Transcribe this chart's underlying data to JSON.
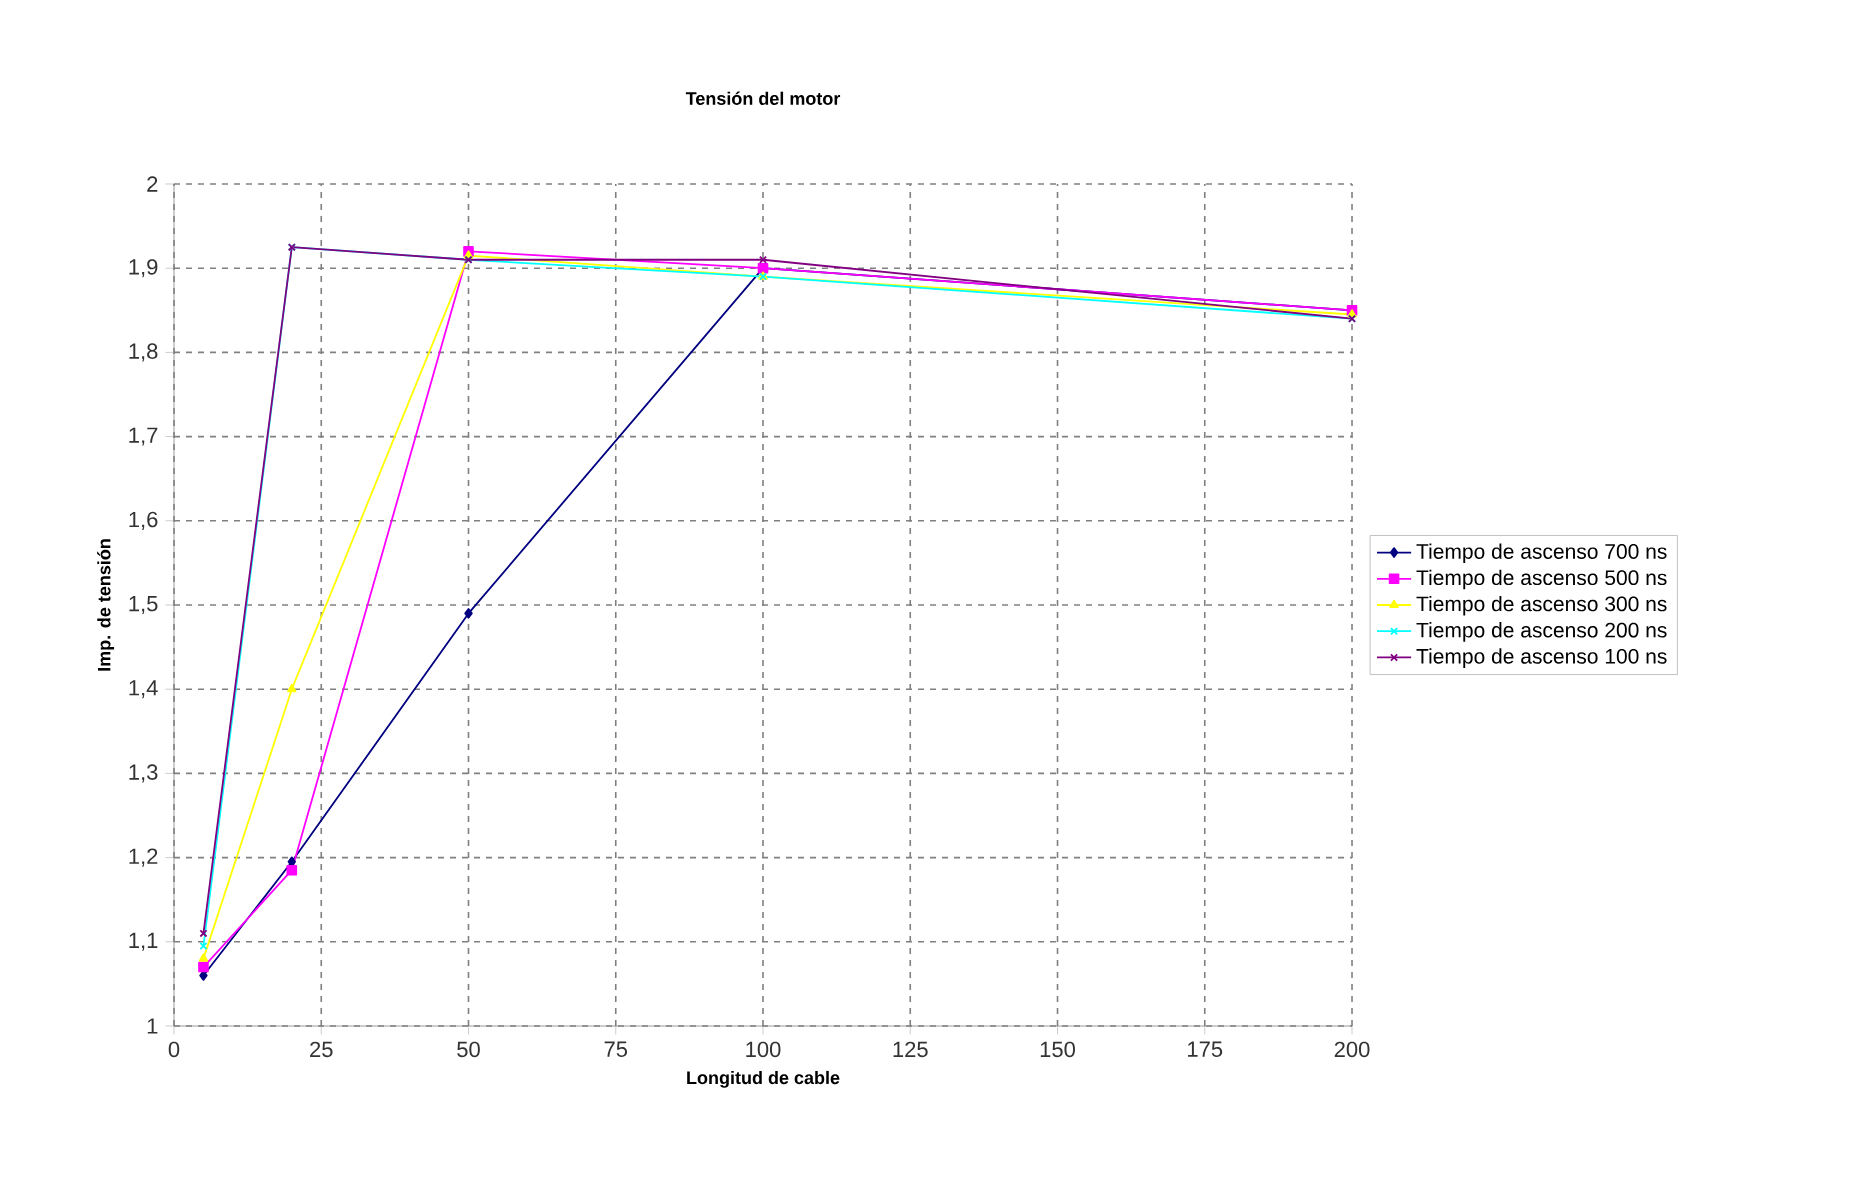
{
  "chart_data": {
    "type": "line",
    "title": "Tensión del motor",
    "xlabel": "Longitud de cable",
    "ylabel": "Imp. de tensión",
    "x": [
      5,
      20,
      50,
      100,
      200
    ],
    "xlim": [
      0,
      200
    ],
    "xticks": [
      0,
      25,
      50,
      75,
      100,
      125,
      150,
      175,
      200
    ],
    "ylim": [
      1,
      2
    ],
    "yticks": [
      {
        "value": 1,
        "label": "1"
      },
      {
        "value": 1.1,
        "label": "1,1"
      },
      {
        "value": 1.2,
        "label": "1,2"
      },
      {
        "value": 1.3,
        "label": "1,3"
      },
      {
        "value": 1.4,
        "label": "1,4"
      },
      {
        "value": 1.5,
        "label": "1,5"
      },
      {
        "value": 1.6,
        "label": "1,6"
      },
      {
        "value": 1.7,
        "label": "1,7"
      },
      {
        "value": 1.8,
        "label": "1,8"
      },
      {
        "value": 1.9,
        "label": "1,9"
      },
      {
        "value": 2,
        "label": "2"
      }
    ],
    "grid": true,
    "legend": "right",
    "line_style": "solid",
    "series": [
      {
        "name": "Tiempo de ascenso 700 ns",
        "color": "#000080",
        "marker": "diamond",
        "values": [
          1.06,
          1.195,
          1.49,
          1.9,
          1.85
        ]
      },
      {
        "name": "Tiempo de ascenso 500 ns",
        "color": "#ff00ff",
        "marker": "square",
        "values": [
          1.07,
          1.185,
          1.92,
          1.9,
          1.85
        ]
      },
      {
        "name": "Tiempo de ascenso 300 ns",
        "color": "#ffff00",
        "marker": "triangle",
        "values": [
          1.08,
          1.4,
          1.915,
          1.89,
          1.845
        ]
      },
      {
        "name": "Tiempo de ascenso 200 ns",
        "color": "#00ffff",
        "marker": "cross",
        "values": [
          1.095,
          1.925,
          1.91,
          1.89,
          1.84
        ]
      },
      {
        "name": "Tiempo de ascenso 100 ns",
        "color": "#800080",
        "marker": "cross",
        "values": [
          1.11,
          1.925,
          1.91,
          1.91,
          1.84
        ]
      }
    ]
  }
}
